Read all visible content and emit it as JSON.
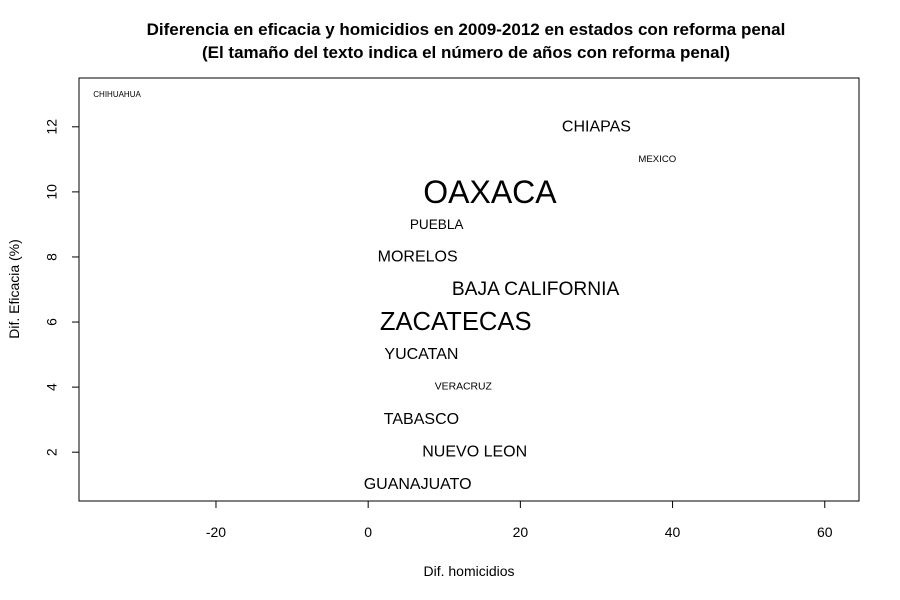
{
  "chart_data": {
    "type": "scatter",
    "title": "Diferencia en eficacia y homicidios en 2009-2012 en estados con reforma penal",
    "subtitle": "(El tamaño del texto indica el número de años con reforma penal)",
    "xlabel": "Dif. homicidios",
    "ylabel": "Dif. Eficacia (%)",
    "xlim": [
      -38,
      64.5
    ],
    "ylim": [
      0.5,
      13.5
    ],
    "xticks": [
      -20,
      0,
      20,
      40,
      60
    ],
    "yticks": [
      2,
      4,
      6,
      8,
      10,
      12
    ],
    "xtick_labels": [
      "-20",
      "0",
      "20",
      "40",
      "60"
    ],
    "ytick_labels": [
      "2",
      "4",
      "6",
      "8",
      "10",
      "12"
    ],
    "grid": false,
    "legend": "none",
    "points": [
      {
        "label": "CHIHUAHUA",
        "x": -33,
        "y": 13,
        "size": 0.5
      },
      {
        "label": "CHIAPAS",
        "x": 30,
        "y": 12,
        "size": 1.0
      },
      {
        "label": "MEXICO",
        "x": 38,
        "y": 11,
        "size": 0.6
      },
      {
        "label": "OAXACA",
        "x": 16,
        "y": 10,
        "size": 2.0
      },
      {
        "label": "PUEBLA",
        "x": 9,
        "y": 9,
        "size": 0.85
      },
      {
        "label": "MORELOS",
        "x": 6.5,
        "y": 8,
        "size": 1.0
      },
      {
        "label": "BAJA CALIFORNIA",
        "x": 22,
        "y": 7,
        "size": 1.2
      },
      {
        "label": "ZACATECAS",
        "x": 11.5,
        "y": 6,
        "size": 1.6
      },
      {
        "label": "YUCATAN",
        "x": 7,
        "y": 5,
        "size": 1.0
      },
      {
        "label": "VERACRUZ",
        "x": 12.5,
        "y": 4,
        "size": 0.65
      },
      {
        "label": "TABASCO",
        "x": 7,
        "y": 3,
        "size": 1.0
      },
      {
        "label": "NUEVO LEON",
        "x": 14,
        "y": 2,
        "size": 1.0
      },
      {
        "label": "GUANAJUATO",
        "x": 6.5,
        "y": 1,
        "size": 1.0
      }
    ]
  }
}
